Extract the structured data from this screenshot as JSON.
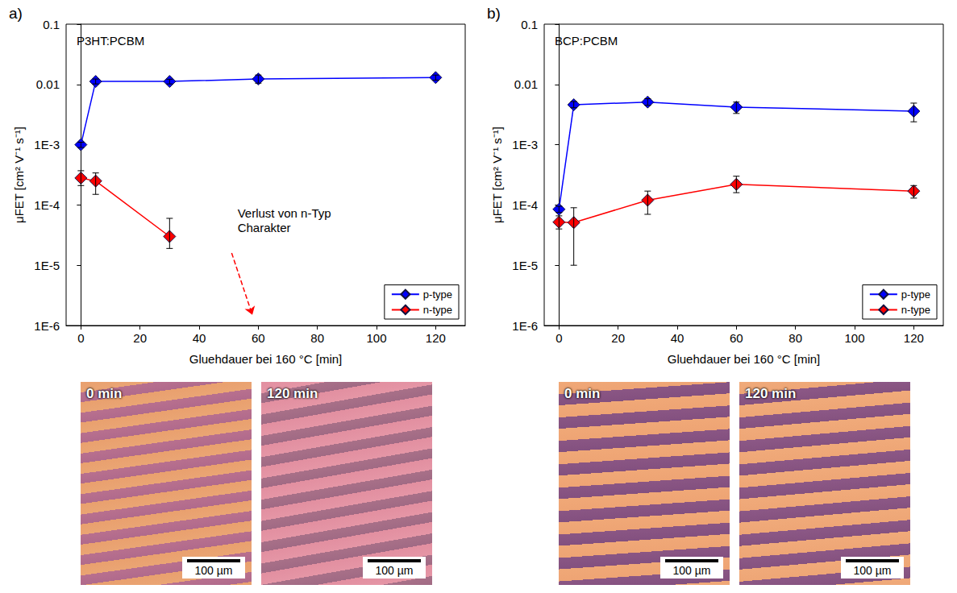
{
  "chart_data": [
    {
      "type": "line",
      "panel_label": "a)",
      "title": "P3HT:PCBM",
      "x_label": "Gluehdauer bei 160 °C [min]",
      "y_label": "μFET [cm² V⁻¹ s⁻¹]",
      "xlim": [
        -5,
        130
      ],
      "xticks": [
        0,
        20,
        40,
        60,
        80,
        100,
        120
      ],
      "ylim": [
        1e-06,
        0.1
      ],
      "yticks": [
        {
          "value": 1e-06,
          "label": "1E-6"
        },
        {
          "value": 1e-05,
          "label": "1E-5"
        },
        {
          "value": 0.0001,
          "label": "1E-4"
        },
        {
          "value": 0.001,
          "label": "1E-3"
        },
        0.01,
        0.1
      ],
      "log": "y",
      "grid": false,
      "legend": "lower right",
      "marker": "diamond",
      "x": [
        0,
        5,
        30,
        60,
        120
      ],
      "series": [
        {
          "name": "p-type",
          "color": "#0000ff",
          "values": [
            0.001,
            0.0112,
            0.0112,
            0.0123,
            0.013
          ],
          "error_low": [
            0.0009,
            0.0102,
            0.0102,
            0.0105,
            0.0118
          ],
          "error_high": [
            0.0011,
            0.0123,
            0.0122,
            0.0143,
            0.0143
          ]
        },
        {
          "name": "n-type",
          "color": "#ff0000",
          "values": [
            0.00028,
            0.00025,
            3e-05,
            null,
            null
          ],
          "error_low": [
            0.00021,
            0.00015,
            1.9e-05,
            null,
            null
          ],
          "error_high": [
            0.00037,
            0.00034,
            6e-05,
            null,
            null
          ]
        }
      ],
      "annotations": [
        {
          "text": "Verlust von n-Typ Charakter",
          "x": 53,
          "y": 5.5e-05,
          "color": "#ff0000",
          "arrow_from": [
            51,
            1.6e-05
          ],
          "arrow_to": [
            58,
            1.5e-06
          ]
        }
      ]
    },
    {
      "type": "line",
      "panel_label": "b)",
      "title": "BCP:PCBM",
      "x_label": "Gluehdauer bei 160 °C [min]",
      "y_label": "μFET [cm² V⁻¹ s⁻¹]",
      "xlim": [
        -5,
        130
      ],
      "xticks": [
        0,
        20,
        40,
        60,
        80,
        100,
        120
      ],
      "ylim": [
        1e-06,
        0.1
      ],
      "yticks": [
        {
          "value": 1e-06,
          "label": "1E-6"
        },
        {
          "value": 1e-05,
          "label": "1E-5"
        },
        {
          "value": 0.0001,
          "label": "1E-4"
        },
        {
          "value": 0.001,
          "label": "1E-3"
        },
        0.01,
        0.1
      ],
      "log": "y",
      "grid": false,
      "legend": "lower right",
      "marker": "diamond",
      "x": [
        0,
        5,
        30,
        60,
        120
      ],
      "series": [
        {
          "name": "p-type",
          "color": "#0000ff",
          "values": [
            8.5e-05,
            0.0046,
            0.0051,
            0.0042,
            0.0036
          ],
          "error_low": [
            7.5e-05,
            0.0041,
            0.0045,
            0.0033,
            0.0024
          ],
          "error_high": [
            9.5e-05,
            0.0052,
            0.0058,
            0.0051,
            0.0049
          ]
        },
        {
          "name": "n-type",
          "color": "#ff0000",
          "values": [
            5.2e-05,
            5.1e-05,
            0.00012,
            0.00022,
            0.00017
          ],
          "error_low": [
            4e-05,
            1e-05,
            7e-05,
            0.00016,
            0.00013
          ],
          "error_high": [
            6.6e-05,
            9e-05,
            0.00017,
            0.0003,
            0.00021
          ]
        }
      ],
      "annotations": []
    }
  ],
  "micrographs": [
    [
      {
        "label": "0 min",
        "scale_bar": "100 µm"
      },
      {
        "label": "120 min",
        "scale_bar": "100 µm"
      }
    ],
    [
      {
        "label": "0 min",
        "scale_bar": "100 µm"
      },
      {
        "label": "120 min",
        "scale_bar": "100 µm"
      }
    ]
  ]
}
